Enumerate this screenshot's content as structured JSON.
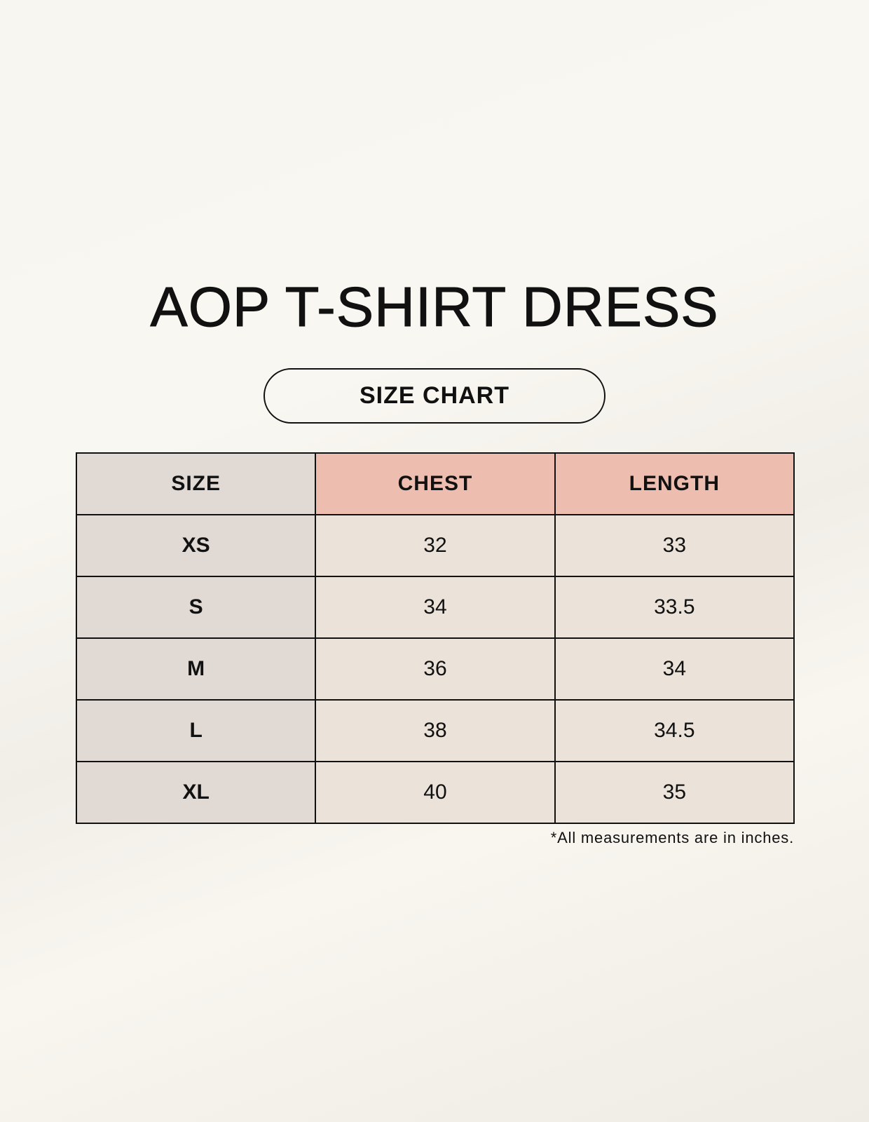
{
  "title": "AOP T-SHIRT DRESS",
  "subtitle": "SIZE CHART",
  "table": {
    "headers": [
      "SIZE",
      "CHEST",
      "LENGTH"
    ],
    "rows": [
      [
        "XS",
        "32",
        "33"
      ],
      [
        "S",
        "34",
        "33.5"
      ],
      [
        "M",
        "36",
        "34"
      ],
      [
        "L",
        "38",
        "34.5"
      ],
      [
        "XL",
        "40",
        "35"
      ]
    ]
  },
  "note": "*All measurements are in inches.",
  "colors": {
    "size_column": "#e0d9d4",
    "header_accent": "#edbdb0",
    "value_cells": "#ebe3da"
  }
}
